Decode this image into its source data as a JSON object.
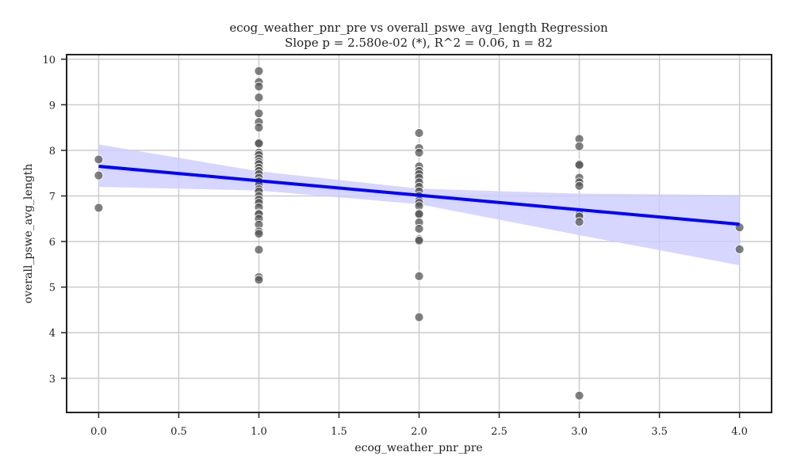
{
  "chart_data": {
    "type": "scatter",
    "title": "ecog_weather_pnr_pre vs overall_pswe_avg_length Regression",
    "subtitle": "Slope p = 2.580e-02 (*), R^2 = 0.06, n = 82",
    "xlabel": "ecog_weather_pnr_pre",
    "ylabel": "overall_pswe_avg_length",
    "xlim": [
      -0.2,
      4.2
    ],
    "ylim": [
      2.25,
      10.1
    ],
    "x_ticks": [
      "0.0",
      "0.5",
      "1.0",
      "1.5",
      "2.0",
      "2.5",
      "3.0",
      "3.5",
      "4.0"
    ],
    "y_ticks": [
      "3",
      "4",
      "5",
      "6",
      "7",
      "8",
      "9",
      "10"
    ],
    "grid": true,
    "point_color": "#555555",
    "line_color": "#0000ff",
    "band_color": "#ccccff",
    "points": [
      {
        "x": 0,
        "y": 7.8
      },
      {
        "x": 0,
        "y": 7.45
      },
      {
        "x": 0,
        "y": 6.74
      },
      {
        "x": 1,
        "y": 9.74
      },
      {
        "x": 1,
        "y": 9.5
      },
      {
        "x": 1,
        "y": 9.4
      },
      {
        "x": 1,
        "y": 9.16
      },
      {
        "x": 1,
        "y": 8.81
      },
      {
        "x": 1,
        "y": 8.62
      },
      {
        "x": 1,
        "y": 8.5
      },
      {
        "x": 1,
        "y": 8.17
      },
      {
        "x": 1,
        "y": 8.15
      },
      {
        "x": 1,
        "y": 7.95
      },
      {
        "x": 1,
        "y": 7.9
      },
      {
        "x": 1,
        "y": 7.82
      },
      {
        "x": 1,
        "y": 7.75
      },
      {
        "x": 1,
        "y": 7.7
      },
      {
        "x": 1,
        "y": 7.62
      },
      {
        "x": 1,
        "y": 7.55
      },
      {
        "x": 1,
        "y": 7.48
      },
      {
        "x": 1,
        "y": 7.4
      },
      {
        "x": 1,
        "y": 7.32
      },
      {
        "x": 1,
        "y": 7.25
      },
      {
        "x": 1,
        "y": 7.15
      },
      {
        "x": 1,
        "y": 7.1
      },
      {
        "x": 1,
        "y": 7.0
      },
      {
        "x": 1,
        "y": 6.92
      },
      {
        "x": 1,
        "y": 6.85
      },
      {
        "x": 1,
        "y": 6.75
      },
      {
        "x": 1,
        "y": 6.62
      },
      {
        "x": 1,
        "y": 6.6
      },
      {
        "x": 1,
        "y": 6.5
      },
      {
        "x": 1,
        "y": 6.37
      },
      {
        "x": 1,
        "y": 6.22
      },
      {
        "x": 1,
        "y": 6.17
      },
      {
        "x": 1,
        "y": 5.82
      },
      {
        "x": 1,
        "y": 5.22
      },
      {
        "x": 1,
        "y": 5.16
      },
      {
        "x": 2,
        "y": 8.38
      },
      {
        "x": 2,
        "y": 8.05
      },
      {
        "x": 2,
        "y": 7.95
      },
      {
        "x": 2,
        "y": 7.65
      },
      {
        "x": 2,
        "y": 7.55
      },
      {
        "x": 2,
        "y": 7.48
      },
      {
        "x": 2,
        "y": 7.4
      },
      {
        "x": 2,
        "y": 7.3
      },
      {
        "x": 2,
        "y": 7.2
      },
      {
        "x": 2,
        "y": 7.1
      },
      {
        "x": 2,
        "y": 7.0
      },
      {
        "x": 2,
        "y": 6.9
      },
      {
        "x": 2,
        "y": 6.85
      },
      {
        "x": 2,
        "y": 6.78
      },
      {
        "x": 2,
        "y": 6.62
      },
      {
        "x": 2,
        "y": 6.6
      },
      {
        "x": 2,
        "y": 6.42
      },
      {
        "x": 2,
        "y": 6.28
      },
      {
        "x": 2,
        "y": 6.05
      },
      {
        "x": 2,
        "y": 6.02
      },
      {
        "x": 2,
        "y": 5.24
      },
      {
        "x": 2,
        "y": 4.34
      },
      {
        "x": 3,
        "y": 8.25
      },
      {
        "x": 3,
        "y": 8.09
      },
      {
        "x": 3,
        "y": 7.7
      },
      {
        "x": 3,
        "y": 7.68
      },
      {
        "x": 3,
        "y": 7.4
      },
      {
        "x": 3,
        "y": 7.3
      },
      {
        "x": 3,
        "y": 7.22
      },
      {
        "x": 3,
        "y": 6.6
      },
      {
        "x": 3,
        "y": 6.55
      },
      {
        "x": 3,
        "y": 6.43
      },
      {
        "x": 3,
        "y": 2.62
      },
      {
        "x": 4,
        "y": 6.31
      },
      {
        "x": 4,
        "y": 5.83
      }
    ],
    "regression": {
      "x": [
        0,
        4
      ],
      "y": [
        7.65,
        6.38
      ]
    },
    "confidence_band": {
      "x": [
        0,
        1,
        2,
        3,
        4
      ],
      "upper": [
        8.13,
        7.54,
        7.16,
        7.05,
        7.02
      ],
      "lower": [
        7.2,
        7.12,
        6.82,
        6.14,
        5.48
      ]
    }
  }
}
